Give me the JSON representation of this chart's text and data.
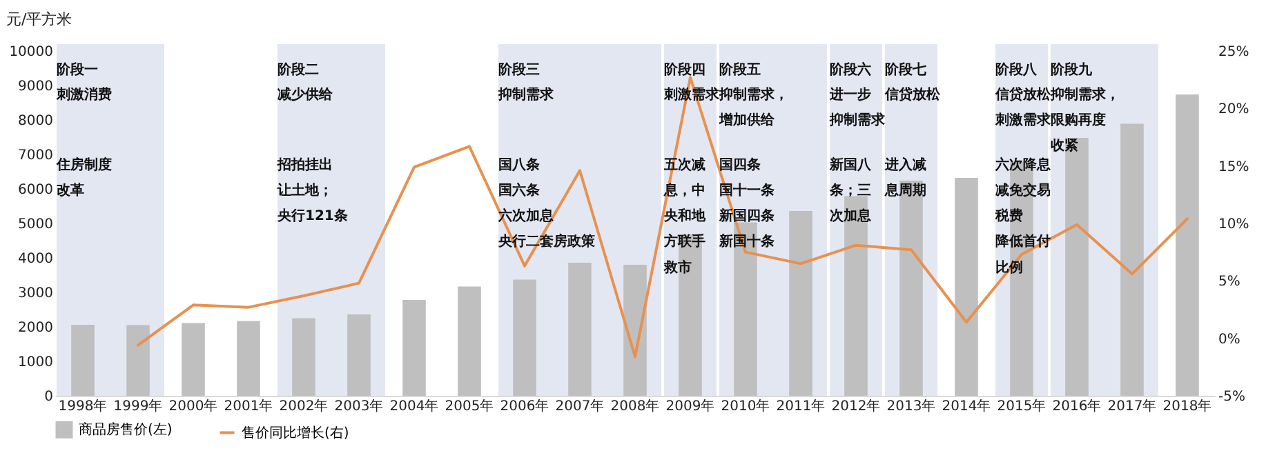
{
  "chart_data": {
    "type": "bar",
    "ylabel": "元/平方米",
    "legend": "bottom",
    "categories": [
      "1998年",
      "1999年",
      "2000年",
      "2001年",
      "2002年",
      "2003年",
      "2004年",
      "2005年",
      "2006年",
      "2007年",
      "2008年",
      "2009年",
      "2010年",
      "2011年",
      "2012年",
      "2013年",
      "2014年",
      "2015年",
      "2016年",
      "2017年",
      "2018年"
    ],
    "series": [
      {
        "name": "商品房售价(左)",
        "color": "#bfbfbf",
        "values": [
          2060,
          2050,
          2110,
          2170,
          2250,
          2360,
          2780,
          3170,
          3370,
          3860,
          3800,
          4680,
          5030,
          5360,
          5790,
          6240,
          6320,
          6790,
          7480,
          7890,
          8740
        ]
      },
      {
        "name": "售价同比增长(右)",
        "type": "line",
        "axis": "y2",
        "color": "#e8914f",
        "values": [
          null,
          -0.6,
          2.9,
          2.7,
          3.7,
          4.8,
          14.9,
          16.7,
          6.3,
          14.6,
          -1.6,
          22.7,
          7.5,
          6.5,
          8.1,
          7.7,
          1.4,
          7.3,
          9.9,
          5.6,
          10.4
        ]
      }
    ],
    "ylim": [
      0,
      10000
    ],
    "yticks": [
      0,
      1000,
      2000,
      3000,
      4000,
      5000,
      6000,
      7000,
      8000,
      9000,
      10000
    ],
    "y2lim": [
      -5,
      25
    ],
    "y2ticks": [
      {
        "value": -5,
        "label": "-5%"
      },
      {
        "value": 0,
        "label": "0%"
      },
      {
        "value": 5,
        "label": "5%"
      },
      {
        "value": 10,
        "label": "10%"
      },
      {
        "value": 15,
        "label": "15%"
      },
      {
        "value": 20,
        "label": "20%"
      },
      {
        "value": 25,
        "label": "25%"
      }
    ],
    "bands": [
      {
        "axis": "x",
        "from": "1998年",
        "to": "1999年",
        "color": "#e3e7f2"
      },
      {
        "axis": "x",
        "from": "2002年",
        "to": "2003年",
        "color": "#e3e7f2"
      },
      {
        "axis": "x",
        "from": "2006年",
        "to": "2008年",
        "color": "#e3e7f2"
      },
      {
        "axis": "x",
        "from": "2009年",
        "to": "2009年",
        "color": "#e3e7f2"
      },
      {
        "axis": "x",
        "from": "2010年",
        "to": "2011年",
        "color": "#e3e7f2"
      },
      {
        "axis": "x",
        "from": "2012年",
        "to": "2012年",
        "color": "#e3e7f2"
      },
      {
        "axis": "x",
        "from": "2013年",
        "to": "2013年",
        "color": "#e3e7f2"
      },
      {
        "axis": "x",
        "from": "2015年",
        "to": "2015年",
        "color": "#e3e7f2"
      },
      {
        "axis": "x",
        "from": "2016年",
        "to": "2017年",
        "color": "#e3e7f2"
      }
    ],
    "annotations": [
      "阶段一",
      "刺激消费",
      "住房制度",
      "改革",
      "阶段二",
      "减少供给",
      "招拍挂出",
      "让土地；",
      "央行121条",
      "阶段三",
      "抑制需求",
      "国八条",
      "国六条",
      "六次加息",
      "央行二套房政策",
      "阶段四",
      "刺激需求",
      "五次减",
      "息，中",
      "央和地",
      "方联手",
      "救市",
      "阶段五",
      "抑制需求，",
      "增加供给",
      "国四条",
      "国十一条",
      "新国四条",
      "新国十条",
      "阶段六",
      "进一步",
      "抑制需求",
      "新国八",
      "条；三",
      "次加息",
      "阶段七",
      "信贷放松",
      "进入减",
      "息周期",
      "阶段八",
      "信贷放松",
      "刺激需求",
      "六次降息",
      "减免交易",
      "税费",
      "降低首付",
      "比例",
      "阶段九",
      "抑制需求，",
      "限购再度",
      "收紧"
    ]
  }
}
